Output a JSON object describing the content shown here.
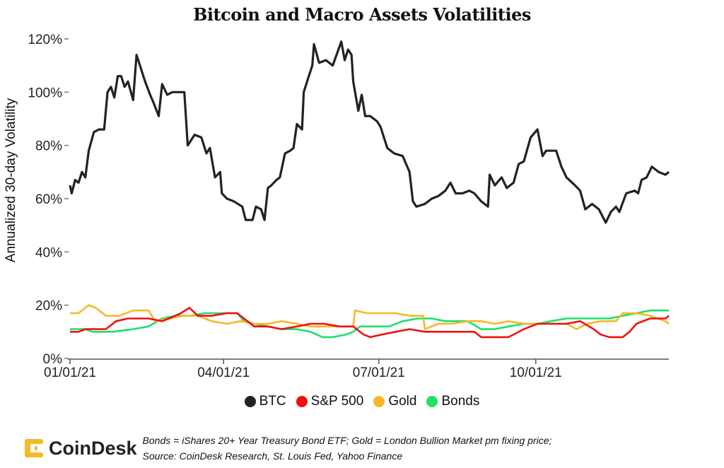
{
  "chart_data": {
    "type": "line",
    "title": "Bitcoin and Macro Assets Volatilities",
    "xlabel": "",
    "ylabel": "Annualized 30-day Volatility",
    "x_units": "days since 01/01/21",
    "xlim": [
      0,
      351
    ],
    "ylim": [
      0,
      120
    ],
    "yticks": [
      0,
      20,
      40,
      60,
      80,
      100,
      120
    ],
    "ytick_labels": [
      "0%",
      "20%",
      "40%",
      "60%",
      "80%",
      "100%",
      "120%"
    ],
    "xticks": [
      0,
      90,
      181,
      273
    ],
    "xtick_labels": [
      "01/01/21",
      "04/01/21",
      "07/01/21",
      "10/01/21"
    ],
    "grid": false,
    "legend_position": "bottom",
    "series": [
      {
        "name": "BTC",
        "color": "#222222",
        "points": [
          [
            0,
            65
          ],
          [
            1,
            62
          ],
          [
            3,
            67
          ],
          [
            5,
            66
          ],
          [
            7,
            70
          ],
          [
            9,
            68
          ],
          [
            11,
            78
          ],
          [
            14,
            85
          ],
          [
            17,
            86
          ],
          [
            20,
            86
          ],
          [
            22,
            100
          ],
          [
            24,
            102
          ],
          [
            26,
            98
          ],
          [
            28,
            106
          ],
          [
            30,
            106
          ],
          [
            32,
            102
          ],
          [
            34,
            104
          ],
          [
            37,
            97
          ],
          [
            39,
            114
          ],
          [
            42,
            108
          ],
          [
            44,
            104
          ],
          [
            47,
            99
          ],
          [
            49,
            96
          ],
          [
            52,
            91
          ],
          [
            54,
            103
          ],
          [
            57,
            99
          ],
          [
            60,
            100
          ],
          [
            67,
            100
          ],
          [
            69,
            80
          ],
          [
            73,
            84
          ],
          [
            77,
            83
          ],
          [
            80,
            77
          ],
          [
            82,
            79
          ],
          [
            85,
            68
          ],
          [
            88,
            70
          ],
          [
            89,
            62
          ],
          [
            92,
            60
          ],
          [
            96,
            59
          ],
          [
            101,
            57
          ],
          [
            103,
            52
          ],
          [
            107,
            52
          ],
          [
            109,
            57
          ],
          [
            112,
            56
          ],
          [
            114,
            52
          ],
          [
            116,
            64
          ],
          [
            118,
            65
          ],
          [
            121,
            67
          ],
          [
            123,
            68
          ],
          [
            126,
            77
          ],
          [
            129,
            78
          ],
          [
            131,
            79
          ],
          [
            133,
            88
          ],
          [
            136,
            86
          ],
          [
            137,
            100
          ],
          [
            140,
            106
          ],
          [
            142,
            110
          ],
          [
            143,
            118
          ],
          [
            146,
            111
          ],
          [
            150,
            112
          ],
          [
            154,
            110
          ],
          [
            159,
            119
          ],
          [
            161,
            112
          ],
          [
            163,
            116
          ],
          [
            165,
            114
          ],
          [
            166,
            104
          ],
          [
            169,
            93
          ],
          [
            171,
            99
          ],
          [
            173,
            91
          ],
          [
            176,
            91
          ],
          [
            180,
            89
          ],
          [
            182,
            87
          ],
          [
            186,
            79
          ],
          [
            190,
            77
          ],
          [
            195,
            76
          ],
          [
            199,
            70
          ],
          [
            201,
            59
          ],
          [
            203,
            57
          ],
          [
            208,
            58
          ],
          [
            212,
            60
          ],
          [
            216,
            61
          ],
          [
            220,
            63
          ],
          [
            223,
            66
          ],
          [
            226,
            62
          ],
          [
            230,
            62
          ],
          [
            234,
            63
          ],
          [
            237,
            62
          ],
          [
            241,
            59
          ],
          [
            245,
            57
          ],
          [
            246,
            69
          ],
          [
            249,
            65
          ],
          [
            253,
            68
          ],
          [
            256,
            64
          ],
          [
            260,
            66
          ],
          [
            263,
            73
          ],
          [
            266,
            74
          ],
          [
            270,
            83
          ],
          [
            274,
            86
          ],
          [
            277,
            76
          ],
          [
            279,
            78
          ],
          [
            285,
            78
          ],
          [
            288,
            72
          ],
          [
            291,
            68
          ],
          [
            296,
            65
          ],
          [
            299,
            63
          ],
          [
            302,
            56
          ],
          [
            306,
            58
          ],
          [
            310,
            56
          ],
          [
            314,
            51
          ],
          [
            317,
            55
          ],
          [
            320,
            57
          ],
          [
            322,
            55
          ],
          [
            326,
            62
          ],
          [
            331,
            63
          ],
          [
            333,
            62
          ],
          [
            335,
            67
          ],
          [
            338,
            68
          ],
          [
            341,
            72
          ],
          [
            345,
            70
          ],
          [
            349,
            69
          ],
          [
            351,
            70
          ]
        ]
      },
      {
        "name": "S&P 500",
        "color": "#f01010",
        "points": [
          [
            0,
            10
          ],
          [
            5,
            10
          ],
          [
            9,
            11
          ],
          [
            21,
            11
          ],
          [
            27,
            14
          ],
          [
            34,
            15
          ],
          [
            46,
            15
          ],
          [
            54,
            14
          ],
          [
            58,
            15
          ],
          [
            65,
            17
          ],
          [
            70,
            19
          ],
          [
            75,
            16
          ],
          [
            83,
            16
          ],
          [
            92,
            17
          ],
          [
            98,
            17
          ],
          [
            102,
            15
          ],
          [
            108,
            12
          ],
          [
            116,
            12
          ],
          [
            124,
            11
          ],
          [
            133,
            12
          ],
          [
            141,
            13
          ],
          [
            149,
            13
          ],
          [
            158,
            12
          ],
          [
            166,
            12
          ],
          [
            172,
            9
          ],
          [
            176,
            8
          ],
          [
            183,
            9
          ],
          [
            191,
            10
          ],
          [
            199,
            11
          ],
          [
            208,
            10
          ],
          [
            216,
            10
          ],
          [
            228,
            10
          ],
          [
            237,
            10
          ],
          [
            241,
            8
          ],
          [
            249,
            8
          ],
          [
            257,
            8
          ],
          [
            266,
            11
          ],
          [
            274,
            13
          ],
          [
            282,
            13
          ],
          [
            291,
            13
          ],
          [
            299,
            14
          ],
          [
            307,
            11
          ],
          [
            311,
            9
          ],
          [
            316,
            8
          ],
          [
            324,
            8
          ],
          [
            328,
            10
          ],
          [
            332,
            13
          ],
          [
            340,
            15
          ],
          [
            349,
            15
          ],
          [
            351,
            16
          ]
        ]
      },
      {
        "name": "Gold",
        "color": "#f5b928",
        "points": [
          [
            0,
            17
          ],
          [
            5,
            17
          ],
          [
            9,
            19
          ],
          [
            11,
            20
          ],
          [
            15,
            19
          ],
          [
            21,
            16
          ],
          [
            29,
            16
          ],
          [
            37,
            18
          ],
          [
            46,
            18
          ],
          [
            50,
            14
          ],
          [
            58,
            15
          ],
          [
            67,
            16
          ],
          [
            75,
            16
          ],
          [
            83,
            14
          ],
          [
            92,
            13
          ],
          [
            100,
            14
          ],
          [
            108,
            13
          ],
          [
            116,
            13
          ],
          [
            124,
            14
          ],
          [
            133,
            13
          ],
          [
            141,
            12
          ],
          [
            149,
            12
          ],
          [
            162,
            12
          ],
          [
            166,
            12
          ],
          [
            167,
            18
          ],
          [
            174,
            17
          ],
          [
            183,
            17
          ],
          [
            191,
            17
          ],
          [
            199,
            16
          ],
          [
            207,
            16
          ],
          [
            208,
            11
          ],
          [
            216,
            13
          ],
          [
            224,
            13
          ],
          [
            233,
            14
          ],
          [
            241,
            14
          ],
          [
            249,
            13
          ],
          [
            257,
            14
          ],
          [
            266,
            13
          ],
          [
            274,
            13
          ],
          [
            282,
            13
          ],
          [
            291,
            13
          ],
          [
            297,
            11
          ],
          [
            303,
            13
          ],
          [
            311,
            14
          ],
          [
            320,
            14
          ],
          [
            324,
            17
          ],
          [
            332,
            17
          ],
          [
            340,
            16
          ],
          [
            349,
            14
          ],
          [
            351,
            13
          ]
        ]
      },
      {
        "name": "Bonds",
        "color": "#1ee06a",
        "points": [
          [
            0,
            11
          ],
          [
            9,
            11
          ],
          [
            13,
            10
          ],
          [
            25,
            10
          ],
          [
            37,
            11
          ],
          [
            46,
            12
          ],
          [
            54,
            15
          ],
          [
            62,
            16
          ],
          [
            71,
            16
          ],
          [
            79,
            17
          ],
          [
            88,
            17
          ],
          [
            98,
            17
          ],
          [
            102,
            14
          ],
          [
            108,
            13
          ],
          [
            116,
            12
          ],
          [
            124,
            11
          ],
          [
            133,
            11
          ],
          [
            141,
            10
          ],
          [
            148,
            8
          ],
          [
            154,
            8
          ],
          [
            162,
            9
          ],
          [
            166,
            10
          ],
          [
            170,
            12
          ],
          [
            178,
            12
          ],
          [
            187,
            12
          ],
          [
            195,
            14
          ],
          [
            204,
            15
          ],
          [
            212,
            15
          ],
          [
            220,
            14
          ],
          [
            233,
            14
          ],
          [
            241,
            11
          ],
          [
            249,
            11
          ],
          [
            257,
            12
          ],
          [
            266,
            13
          ],
          [
            274,
            13
          ],
          [
            282,
            14
          ],
          [
            291,
            15
          ],
          [
            299,
            15
          ],
          [
            307,
            15
          ],
          [
            316,
            15
          ],
          [
            324,
            16
          ],
          [
            332,
            17
          ],
          [
            340,
            18
          ],
          [
            351,
            18
          ]
        ]
      }
    ]
  },
  "footer": {
    "brand": "CoinDesk",
    "note_line1": "Bonds = iShares 20+ Year Treasury Bond ETF;   Gold = London Bullion Market pm fixing price;",
    "note_line2": "Source: CoinDesk Research, St. Louis Fed, Yahoo Finance"
  }
}
